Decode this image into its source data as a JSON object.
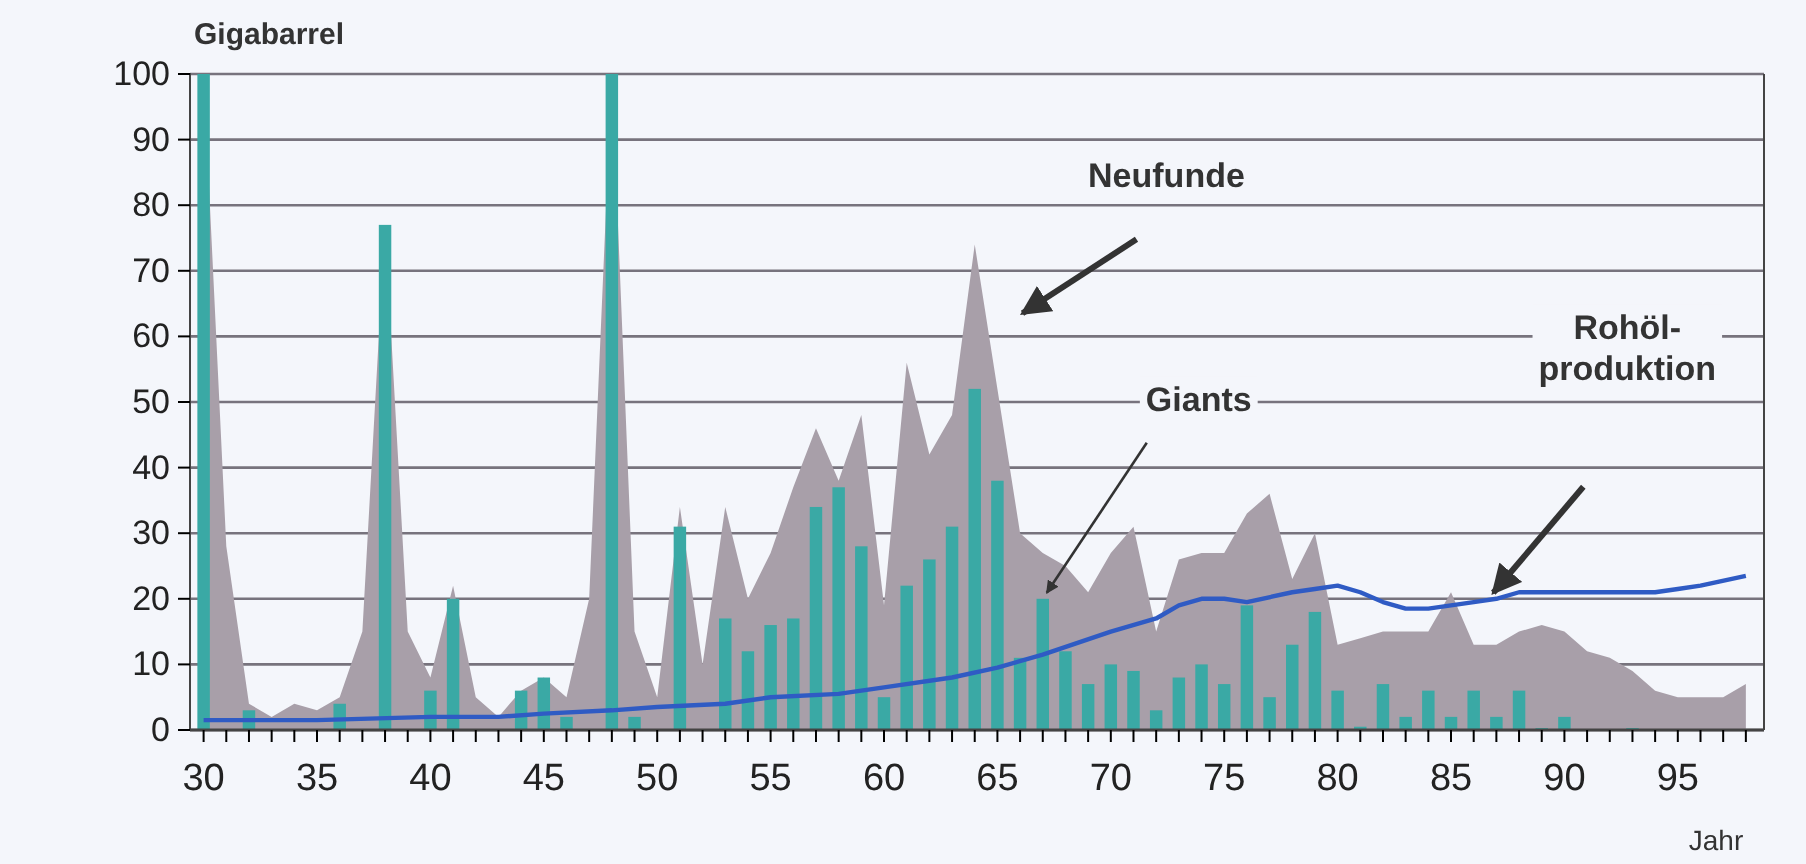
{
  "chart_data": {
    "type": "bar",
    "ylabel": "Gigabarrel",
    "xlabel": "Jahr",
    "x": [
      30,
      31,
      32,
      33,
      34,
      35,
      36,
      37,
      38,
      39,
      40,
      41,
      42,
      43,
      44,
      45,
      46,
      47,
      48,
      49,
      50,
      51,
      52,
      53,
      54,
      55,
      56,
      57,
      58,
      59,
      60,
      61,
      62,
      63,
      64,
      65,
      66,
      67,
      68,
      69,
      70,
      71,
      72,
      73,
      74,
      75,
      76,
      77,
      78,
      79,
      80,
      81,
      82,
      83,
      84,
      85,
      86,
      87,
      88,
      89,
      90,
      91,
      92,
      93,
      94,
      95,
      96,
      97,
      98
    ],
    "series": [
      {
        "type": "area",
        "color": "#a89fa9",
        "values": [
          100,
          28,
          4,
          2,
          4,
          3,
          5,
          15,
          77,
          15,
          8,
          22,
          5,
          2,
          6,
          8,
          5,
          20,
          100,
          15,
          5,
          34,
          10,
          34,
          20,
          27,
          37,
          46,
          38,
          48,
          19,
          56,
          42,
          48,
          74,
          52,
          30,
          27,
          25,
          21,
          27,
          31,
          15,
          26,
          27,
          27,
          33,
          36,
          23,
          30,
          13,
          14,
          15,
          15,
          15,
          21,
          13,
          13,
          15,
          16,
          15,
          12,
          11,
          9,
          6,
          5,
          5,
          5,
          7
        ]
      },
      {
        "color": "#3aa9a5",
        "values": [
          100,
          0,
          3,
          0,
          0,
          0,
          4,
          0,
          77,
          0,
          6,
          20,
          0,
          0,
          6,
          8,
          2,
          0,
          100,
          2,
          0,
          31,
          0,
          17,
          12,
          16,
          17,
          34,
          37,
          28,
          5,
          22,
          26,
          31,
          52,
          38,
          11,
          20,
          12,
          7,
          10,
          9,
          3,
          8,
          10,
          7,
          19,
          5,
          13,
          18,
          6,
          0.5,
          7,
          2,
          6,
          2,
          6,
          2,
          6,
          0.3,
          2,
          0,
          0,
          0.3,
          0,
          0,
          0,
          0,
          0
        ]
      },
      {
        "type": "line",
        "color": "#2f5bc4",
        "x": [
          30,
          35,
          40,
          43,
          45,
          48,
          50,
          53,
          55,
          58,
          60,
          63,
          65,
          67,
          70,
          72,
          73,
          74,
          75,
          76,
          78,
          79,
          80,
          81,
          82,
          83,
          84,
          85,
          86,
          87,
          88,
          90,
          92,
          94,
          95,
          96,
          98
        ],
        "values": [
          1.5,
          1.5,
          2,
          2,
          2.5,
          3,
          3.5,
          4,
          5,
          5.5,
          6.5,
          8,
          9.5,
          11.5,
          15,
          17,
          19,
          20,
          20,
          19.5,
          21,
          21.5,
          22,
          21,
          19.5,
          18.5,
          18.5,
          19,
          19.5,
          20,
          21,
          21,
          21,
          21,
          21.5,
          22,
          23.5
        ]
      }
    ],
    "xlim": [
      29.4,
      98.8
    ],
    "xticks": [
      30,
      {
        "value": 31,
        "label": null
      },
      {
        "value": 32,
        "label": null
      },
      {
        "value": 33,
        "label": null
      },
      {
        "value": 34,
        "label": null
      },
      35,
      {
        "value": 36,
        "label": null
      },
      {
        "value": 37,
        "label": null
      },
      {
        "value": 38,
        "label": null
      },
      {
        "value": 39,
        "label": null
      },
      40,
      {
        "value": 41,
        "label": null
      },
      {
        "value": 42,
        "label": null
      },
      {
        "value": 43,
        "label": null
      },
      {
        "value": 44,
        "label": null
      },
      45,
      {
        "value": 46,
        "label": null
      },
      {
        "value": 47,
        "label": null
      },
      {
        "value": 48,
        "label": null
      },
      {
        "value": 49,
        "label": null
      },
      50,
      {
        "value": 51,
        "label": null
      },
      {
        "value": 52,
        "label": null
      },
      {
        "value": 53,
        "label": null
      },
      {
        "value": 54,
        "label": null
      },
      55,
      {
        "value": 56,
        "label": null
      },
      {
        "value": 57,
        "label": null
      },
      {
        "value": 58,
        "label": null
      },
      {
        "value": 59,
        "label": null
      },
      60,
      {
        "value": 61,
        "label": null
      },
      {
        "value": 62,
        "label": null
      },
      {
        "value": 63,
        "label": null
      },
      {
        "value": 64,
        "label": null
      },
      65,
      {
        "value": 66,
        "label": null
      },
      {
        "value": 67,
        "label": null
      },
      {
        "value": 68,
        "label": null
      },
      {
        "value": 69,
        "label": null
      },
      70,
      {
        "value": 71,
        "label": null
      },
      {
        "value": 72,
        "label": null
      },
      {
        "value": 73,
        "label": null
      },
      {
        "value": 74,
        "label": null
      },
      75,
      {
        "value": 76,
        "label": null
      },
      {
        "value": 77,
        "label": null
      },
      {
        "value": 78,
        "label": null
      },
      {
        "value": 79,
        "label": null
      },
      80,
      {
        "value": 81,
        "label": null
      },
      {
        "value": 82,
        "label": null
      },
      {
        "value": 83,
        "label": null
      },
      {
        "value": 84,
        "label": null
      },
      85,
      {
        "value": 86,
        "label": null
      },
      {
        "value": 87,
        "label": null
      },
      {
        "value": 88,
        "label": null
      },
      {
        "value": 89,
        "label": null
      },
      90,
      {
        "value": 91,
        "label": null
      },
      {
        "value": 92,
        "label": null
      },
      {
        "value": 93,
        "label": null
      },
      {
        "value": 94,
        "label": null
      },
      95,
      {
        "value": 96,
        "label": null
      },
      {
        "value": 97,
        "label": null
      },
      {
        "value": 98,
        "label": null
      }
    ],
    "ylim": [
      0,
      100
    ],
    "yticks": [
      0,
      10,
      20,
      30,
      40,
      50,
      60,
      70,
      80,
      90,
      100
    ],
    "grid": "y",
    "annotations": [
      "Neufunde",
      {
        "text": "Giants",
        "x": 67,
        "y": 20
      },
      "Rohöl-\nproduktion"
    ]
  }
}
